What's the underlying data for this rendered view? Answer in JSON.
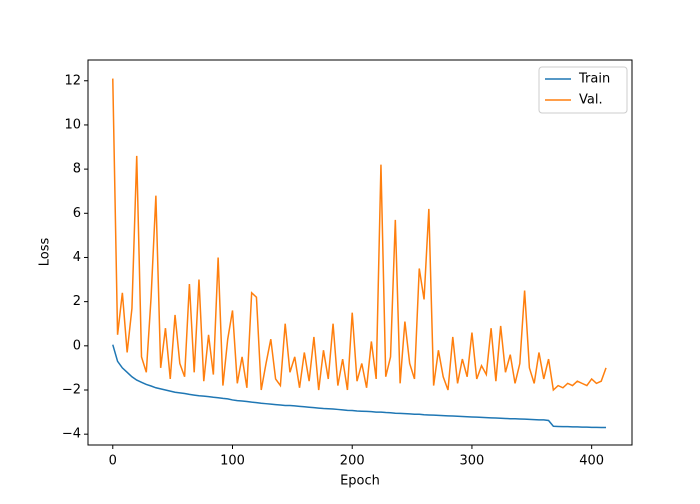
{
  "chart_data": {
    "type": "line",
    "x_label": "Epoch",
    "y_label": "Loss",
    "x": [
      0,
      4,
      8,
      12,
      16,
      20,
      24,
      28,
      32,
      36,
      40,
      44,
      48,
      52,
      56,
      60,
      64,
      68,
      72,
      76,
      80,
      84,
      88,
      92,
      96,
      100,
      104,
      108,
      112,
      116,
      120,
      124,
      128,
      132,
      136,
      140,
      144,
      148,
      152,
      156,
      160,
      164,
      168,
      172,
      176,
      180,
      184,
      188,
      192,
      196,
      200,
      204,
      208,
      212,
      216,
      220,
      224,
      228,
      232,
      236,
      240,
      244,
      248,
      252,
      256,
      260,
      264,
      268,
      272,
      276,
      280,
      284,
      288,
      292,
      296,
      300,
      304,
      308,
      312,
      316,
      320,
      324,
      328,
      332,
      336,
      340,
      344,
      348,
      352,
      356,
      360,
      364,
      368,
      372,
      376,
      380,
      384,
      388,
      392,
      396,
      400,
      404,
      408,
      412
    ],
    "series": [
      {
        "name": "Train",
        "color": "#1f77b4",
        "values": [
          0.05,
          -0.7,
          -1.0,
          -1.2,
          -1.4,
          -1.55,
          -1.65,
          -1.75,
          -1.82,
          -1.9,
          -1.95,
          -2.0,
          -2.05,
          -2.1,
          -2.13,
          -2.16,
          -2.2,
          -2.23,
          -2.26,
          -2.28,
          -2.3,
          -2.33,
          -2.35,
          -2.38,
          -2.4,
          -2.45,
          -2.48,
          -2.5,
          -2.52,
          -2.55,
          -2.57,
          -2.6,
          -2.62,
          -2.64,
          -2.66,
          -2.68,
          -2.7,
          -2.7,
          -2.72,
          -2.74,
          -2.76,
          -2.78,
          -2.8,
          -2.82,
          -2.84,
          -2.85,
          -2.86,
          -2.88,
          -2.9,
          -2.92,
          -2.93,
          -2.95,
          -2.96,
          -2.97,
          -2.98,
          -3.0,
          -3.0,
          -3.02,
          -3.03,
          -3.05,
          -3.06,
          -3.07,
          -3.08,
          -3.1,
          -3.1,
          -3.12,
          -3.13,
          -3.14,
          -3.15,
          -3.16,
          -3.17,
          -3.18,
          -3.19,
          -3.2,
          -3.21,
          -3.22,
          -3.23,
          -3.24,
          -3.25,
          -3.26,
          -3.27,
          -3.28,
          -3.29,
          -3.3,
          -3.3,
          -3.31,
          -3.32,
          -3.33,
          -3.34,
          -3.35,
          -3.35,
          -3.38,
          -3.64,
          -3.65,
          -3.66,
          -3.66,
          -3.67,
          -3.67,
          -3.68,
          -3.68,
          -3.69,
          -3.69,
          -3.7,
          -3.7
        ]
      },
      {
        "name": "Val.",
        "color": "#ff7f0e",
        "values": [
          12.1,
          0.5,
          2.4,
          -0.3,
          1.7,
          8.6,
          -0.5,
          -1.2,
          2.2,
          6.8,
          -1.0,
          0.8,
          -1.5,
          1.4,
          -0.8,
          -1.4,
          2.8,
          -1.2,
          3.0,
          -1.6,
          0.5,
          -1.3,
          4.0,
          -1.8,
          0.3,
          1.6,
          -1.7,
          -0.5,
          -1.9,
          2.4,
          2.2,
          -2.0,
          -0.8,
          0.3,
          -1.5,
          -1.8,
          1.0,
          -1.2,
          -0.5,
          -1.9,
          -0.3,
          -1.6,
          0.4,
          -2.0,
          -0.2,
          -1.5,
          1.0,
          -1.8,
          -0.6,
          -2.0,
          1.5,
          -1.6,
          -0.8,
          -1.9,
          0.2,
          -1.5,
          8.2,
          -1.4,
          -0.5,
          5.7,
          -1.7,
          1.1,
          -0.8,
          -1.5,
          3.5,
          2.1,
          6.2,
          -1.8,
          -0.2,
          -1.4,
          -2.0,
          0.4,
          -1.7,
          -0.6,
          -1.4,
          0.6,
          -1.5,
          -0.9,
          -1.3,
          0.8,
          -1.6,
          0.9,
          -1.2,
          -0.4,
          -1.7,
          -0.8,
          2.5,
          -1.0,
          -1.7,
          -0.3,
          -1.5,
          -0.6,
          -2.0,
          -1.8,
          -1.9,
          -1.7,
          -1.8,
          -1.6,
          -1.7,
          -1.8,
          -1.5,
          -1.7,
          -1.6,
          -1.0
        ]
      }
    ],
    "xlim": [
      -20.7,
      433.7
    ],
    "ylim": [
      -4.49,
      12.94
    ],
    "xticks": [
      0,
      100,
      200,
      300,
      400
    ],
    "yticks": [
      {
        "value": -4,
        "label": "−4"
      },
      {
        "value": -2,
        "label": "−2"
      },
      0,
      2,
      4,
      6,
      8,
      10,
      12
    ],
    "legend": "upper right"
  }
}
